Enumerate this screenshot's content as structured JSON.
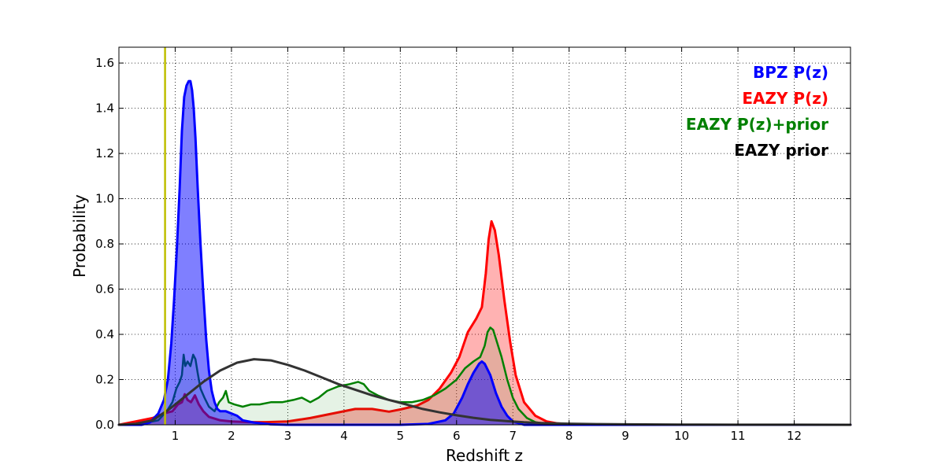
{
  "chart_data": {
    "type": "area",
    "title": "",
    "xlabel": "Redshift z",
    "ylabel": "Probability",
    "xlim": [
      0,
      13
    ],
    "ylim": [
      0,
      1.67
    ],
    "xticks": [
      1,
      2,
      3,
      4,
      5,
      6,
      7,
      8,
      9,
      10,
      11,
      12
    ],
    "xtick_labels": [
      "1",
      "2",
      "3",
      "4",
      "5",
      "6",
      "7",
      "8",
      "9",
      "10",
      "11",
      "12"
    ],
    "yticks": [
      0,
      0.2,
      0.4,
      0.6,
      0.8,
      1.0,
      1.2,
      1.4,
      1.6
    ],
    "ytick_labels": [
      "0.0",
      "0.2",
      "0.4",
      "0.6",
      "0.8",
      "1.0",
      "1.2",
      "1.4",
      "1.6"
    ],
    "grid": true,
    "legend_placement": "top-right",
    "vertical_line": {
      "x": 0.82,
      "color": "#bfbf00"
    },
    "legend": [
      {
        "label": "BPZ P(z)",
        "color": "#0000ff"
      },
      {
        "label": "EAZY P(z)",
        "color": "#ff0000"
      },
      {
        "label": "EAZY P(z)+prior",
        "color": "#008000"
      },
      {
        "label": "EAZY prior",
        "color": "#000000"
      }
    ],
    "series": [
      {
        "name": "EAZY P(z)",
        "color": "#ff0000",
        "fill": "#ff0000",
        "fill_opacity": 0.3,
        "stroke_width": 3,
        "x": [
          0,
          0.3,
          0.6,
          0.8,
          0.95,
          1.05,
          1.12,
          1.17,
          1.22,
          1.28,
          1.35,
          1.42,
          1.5,
          1.6,
          1.8,
          2.0,
          2.3,
          2.6,
          3.0,
          3.4,
          3.8,
          4.2,
          4.5,
          4.8,
          5.0,
          5.3,
          5.5,
          5.7,
          5.9,
          6.05,
          6.2,
          6.35,
          6.45,
          6.52,
          6.57,
          6.62,
          6.68,
          6.75,
          6.85,
          6.95,
          7.05,
          7.2,
          7.4,
          7.6,
          7.8,
          8.0,
          8.5,
          9,
          10,
          13
        ],
        "y": [
          0,
          0.015,
          0.03,
          0.05,
          0.06,
          0.09,
          0.1,
          0.135,
          0.11,
          0.1,
          0.13,
          0.09,
          0.06,
          0.035,
          0.02,
          0.015,
          0.012,
          0.012,
          0.015,
          0.03,
          0.05,
          0.07,
          0.07,
          0.058,
          0.068,
          0.085,
          0.11,
          0.16,
          0.23,
          0.3,
          0.41,
          0.47,
          0.52,
          0.67,
          0.82,
          0.9,
          0.86,
          0.75,
          0.55,
          0.37,
          0.22,
          0.1,
          0.04,
          0.015,
          0.006,
          0.003,
          0.001,
          0,
          0,
          0
        ]
      },
      {
        "name": "EAZY P(z)+prior",
        "color": "#008000",
        "fill": "#008000",
        "fill_opacity": 0.1,
        "stroke_width": 2.5,
        "x": [
          0,
          0.4,
          0.7,
          0.85,
          0.95,
          1.02,
          1.08,
          1.12,
          1.15,
          1.18,
          1.22,
          1.27,
          1.32,
          1.36,
          1.4,
          1.45,
          1.52,
          1.6,
          1.7,
          1.78,
          1.85,
          1.9,
          1.95,
          2.05,
          2.2,
          2.35,
          2.5,
          2.7,
          2.9,
          3.1,
          3.25,
          3.4,
          3.55,
          3.7,
          3.9,
          4.1,
          4.25,
          4.35,
          4.45,
          4.6,
          4.8,
          5.0,
          5.2,
          5.4,
          5.6,
          5.8,
          6.0,
          6.15,
          6.3,
          6.42,
          6.5,
          6.55,
          6.6,
          6.65,
          6.7,
          6.8,
          6.9,
          7.0,
          7.1,
          7.25,
          7.4,
          7.6,
          7.8,
          8.2,
          13
        ],
        "y": [
          0,
          0.005,
          0.02,
          0.06,
          0.1,
          0.16,
          0.19,
          0.22,
          0.31,
          0.26,
          0.28,
          0.26,
          0.31,
          0.29,
          0.23,
          0.16,
          0.12,
          0.08,
          0.06,
          0.1,
          0.12,
          0.15,
          0.1,
          0.09,
          0.08,
          0.09,
          0.09,
          0.1,
          0.1,
          0.11,
          0.12,
          0.1,
          0.12,
          0.15,
          0.17,
          0.18,
          0.19,
          0.18,
          0.15,
          0.13,
          0.11,
          0.1,
          0.1,
          0.11,
          0.13,
          0.16,
          0.2,
          0.25,
          0.28,
          0.3,
          0.35,
          0.41,
          0.43,
          0.42,
          0.38,
          0.3,
          0.2,
          0.12,
          0.07,
          0.03,
          0.012,
          0.004,
          0.001,
          0,
          0
        ]
      },
      {
        "name": "BPZ P(z)",
        "color": "#0000ff",
        "fill": "#0000ff",
        "fill_opacity": 0.5,
        "stroke_width": 3,
        "x": [
          0,
          0.4,
          0.55,
          0.7,
          0.8,
          0.87,
          0.93,
          0.98,
          1.03,
          1.08,
          1.12,
          1.16,
          1.2,
          1.24,
          1.27,
          1.3,
          1.33,
          1.36,
          1.4,
          1.45,
          1.5,
          1.55,
          1.6,
          1.65,
          1.7,
          1.75,
          1.8,
          1.9,
          2.0,
          2.1,
          2.2,
          2.4,
          2.7,
          3.0,
          4.0,
          5.0,
          5.5,
          5.8,
          5.95,
          6.1,
          6.2,
          6.3,
          6.4,
          6.45,
          6.5,
          6.6,
          6.7,
          6.8,
          6.9,
          7.0,
          7.2,
          13
        ],
        "y": [
          0,
          0,
          0.01,
          0.05,
          0.11,
          0.2,
          0.36,
          0.55,
          0.78,
          1.05,
          1.3,
          1.45,
          1.5,
          1.52,
          1.52,
          1.48,
          1.4,
          1.27,
          1.05,
          0.8,
          0.58,
          0.38,
          0.24,
          0.15,
          0.1,
          0.07,
          0.06,
          0.06,
          0.05,
          0.04,
          0.02,
          0.01,
          0.002,
          0,
          0,
          0,
          0.004,
          0.02,
          0.05,
          0.12,
          0.18,
          0.23,
          0.27,
          0.28,
          0.27,
          0.22,
          0.14,
          0.08,
          0.04,
          0.015,
          0,
          0
        ]
      },
      {
        "name": "EAZY prior",
        "color": "#333333",
        "fill": "none",
        "fill_opacity": 0,
        "stroke_width": 3,
        "x": [
          0,
          0.3,
          0.6,
          0.9,
          1.2,
          1.5,
          1.8,
          2.1,
          2.4,
          2.7,
          3.0,
          3.3,
          3.6,
          3.9,
          4.2,
          4.5,
          4.8,
          5.1,
          5.4,
          5.7,
          6.0,
          6.3,
          6.6,
          6.9,
          7.2,
          7.5,
          8.0,
          8.5,
          9.0,
          10.0,
          11.0,
          12.0,
          13.0
        ],
        "y": [
          0,
          0.005,
          0.02,
          0.07,
          0.13,
          0.19,
          0.24,
          0.275,
          0.29,
          0.285,
          0.265,
          0.24,
          0.21,
          0.18,
          0.155,
          0.13,
          0.11,
          0.09,
          0.07,
          0.055,
          0.042,
          0.031,
          0.022,
          0.016,
          0.011,
          0.008,
          0.005,
          0.003,
          0.002,
          0.001,
          0.0005,
          0.0002,
          0
        ]
      }
    ]
  }
}
